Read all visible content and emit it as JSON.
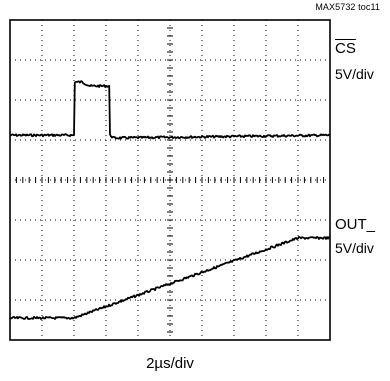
{
  "figure_id": "MAX5732 toc11",
  "chart_data": {
    "type": "line",
    "title": "",
    "xlabel": "2µs/div",
    "ylabel": "",
    "grid": true,
    "divisions": {
      "x": 10,
      "y": 8
    },
    "x_unit": "µs",
    "x_range": [
      0,
      20
    ],
    "channels": [
      {
        "name": "CS",
        "name_overline": true,
        "scale": "5V/div",
        "unit": "div",
        "x": [
          0,
          4.0,
          4.05,
          4.5,
          5.0,
          6.2,
          6.25,
          6.5,
          20
        ],
        "y": [
          5.12,
          5.12,
          6.45,
          6.45,
          6.35,
          6.35,
          5.12,
          5.05,
          5.12
        ]
      },
      {
        "name": "OUT_",
        "scale": "5V/div",
        "unit": "div",
        "x": [
          0,
          4.0,
          18.0,
          20
        ],
        "y": [
          0.55,
          0.55,
          2.55,
          2.55
        ]
      }
    ]
  }
}
